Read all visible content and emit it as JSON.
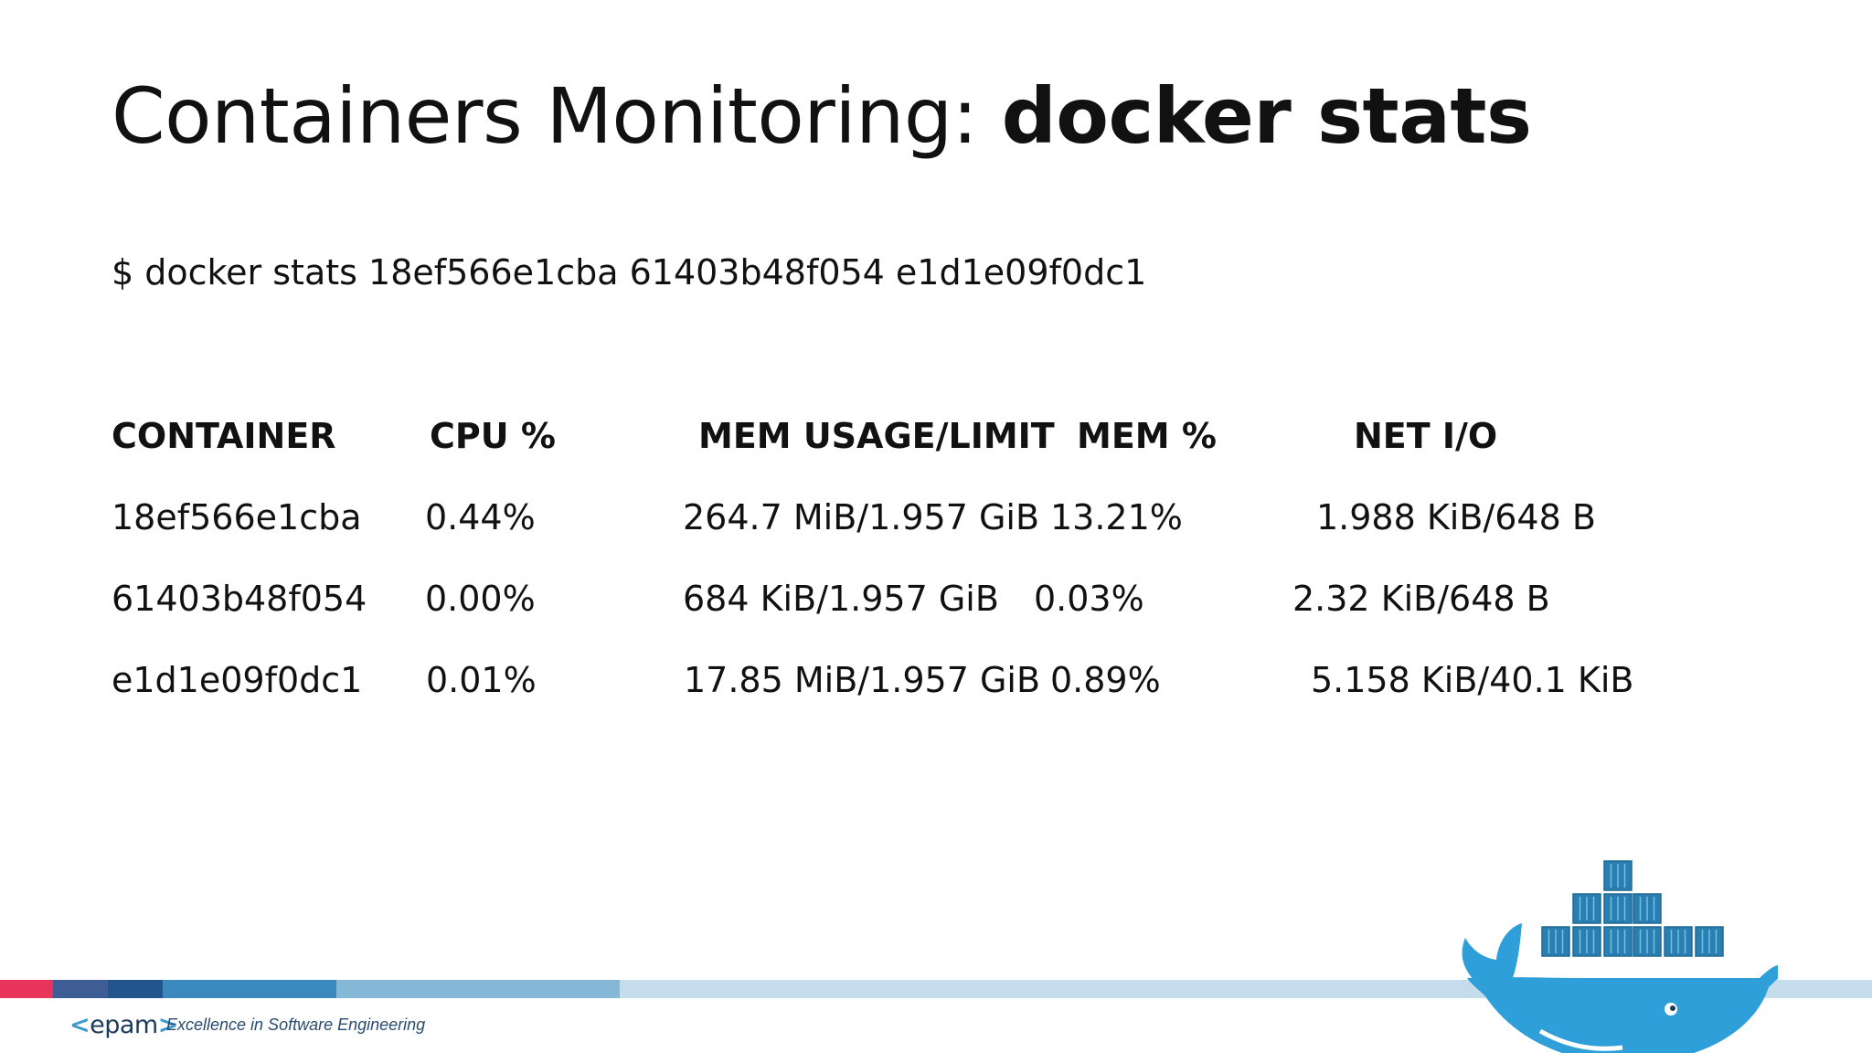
{
  "slide": {
    "title_regular": "Containers Monitoring: ",
    "title_bold": "docker stats",
    "command": "$ docker stats 18ef566e1cba 61403b48f054 e1d1e09f0dc1"
  },
  "table": {
    "headers": [
      "CONTAINER",
      "CPU %",
      "MEM USAGE/LIMIT",
      "MEM %",
      "NET I/O"
    ],
    "rows": [
      [
        "18ef566e1cba",
        "0.44%",
        "264.7 MiB/1.957 GiB",
        "13.21%",
        "1.988 KiB/648 B"
      ],
      [
        "61403b48f054",
        "0.00%",
        "684 KiB/1.957 GiB",
        "0.03%",
        "2.32 KiB/648 B"
      ],
      [
        "e1d1e09f0dc1",
        "0.01%",
        "17.85 MiB/1.957 GiB",
        "0.89%",
        "5.158 KiB/40.1 KiB"
      ]
    ]
  },
  "footer": {
    "logo_left": "<",
    "logo_text": "epam",
    "logo_right": ">",
    "tagline": "Excellence in Software Engineering",
    "bar_colors": [
      "#e8345a",
      "#3d5d94",
      "#23548c",
      "#3c89c0",
      "#84b8d6",
      "#c4dcec"
    ]
  },
  "decor": {
    "docker_logo_icon": "docker-whale-icon",
    "whale_color": "#2f9fd9",
    "container_color": "#2b7fb0"
  }
}
